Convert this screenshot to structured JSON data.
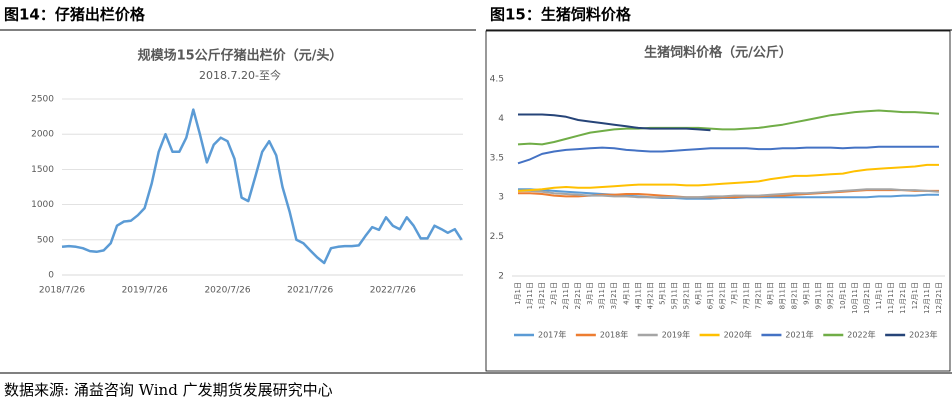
{
  "headings": [
    "图14：仔猪出栏价格",
    "图15：生猪饲料价格"
  ],
  "source": "数据来源: 涌益咨询 Wind 广发期货发展研究中心",
  "chart_data": [
    {
      "type": "line",
      "title": "规模场15公斤仔猪出栏价（元/头）",
      "subtitle": "2018.7.20-至今",
      "x": [
        "2018/7/26",
        "2018/8/26",
        "2018/9/26",
        "2018/10/26",
        "2018/11/26",
        "2018/12/26",
        "2019/1/26",
        "2019/2/26",
        "2019/3/26",
        "2019/4/26",
        "2019/5/26",
        "2019/6/26",
        "2019/7/26",
        "2019/8/26",
        "2019/9/26",
        "2019/10/26",
        "2019/11/26",
        "2019/12/26",
        "2020/1/26",
        "2020/2/26",
        "2020/3/26",
        "2020/4/26",
        "2020/5/26",
        "2020/6/26",
        "2020/7/26",
        "2020/8/26",
        "2020/9/26",
        "2020/10/26",
        "2020/11/26",
        "2020/12/26",
        "2021/1/26",
        "2021/2/26",
        "2021/3/26",
        "2021/4/26",
        "2021/5/26",
        "2021/6/26",
        "2021/7/26",
        "2021/8/26",
        "2021/9/26",
        "2021/10/26",
        "2021/11/26",
        "2021/12/26",
        "2022/1/26",
        "2022/2/26",
        "2022/3/26",
        "2022/4/26",
        "2022/5/26",
        "2022/6/26",
        "2022/7/26",
        "2022/8/26",
        "2022/9/26",
        "2022/10/26",
        "2022/11/26",
        "2022/12/26",
        "2023/1/26",
        "2023/2/26",
        "2023/3/26",
        "2023/4/26",
        "2023/5/26"
      ],
      "series": [
        {
          "name": "仔猪出栏价",
          "color": "#5b9bd5",
          "values": [
            400,
            410,
            400,
            380,
            340,
            330,
            350,
            450,
            700,
            760,
            770,
            850,
            950,
            1300,
            1750,
            2000,
            1750,
            1750,
            1950,
            2350,
            2000,
            1600,
            1850,
            1950,
            1900,
            1650,
            1100,
            1050,
            1400,
            1750,
            1900,
            1700,
            1250,
            900,
            500,
            450,
            350,
            250,
            170,
            380,
            400,
            410,
            410,
            420,
            550,
            680,
            640,
            820,
            700,
            650,
            820,
            700,
            520,
            520,
            700,
            650,
            600,
            650,
            500
          ]
        }
      ],
      "xlim": [
        "2018/7/26",
        "2023/6/1"
      ],
      "xticks": [
        "2018/7/26",
        "2019/7/26",
        "2020/7/26",
        "2021/7/26",
        "2022/7/26"
      ],
      "ylim": [
        0,
        2500
      ],
      "yticks": [
        0,
        500,
        1000,
        1500,
        2000,
        2500
      ],
      "grid": true,
      "legend": false
    },
    {
      "type": "line",
      "title": "生猪饲料价格（元/公斤）",
      "categories": [
        "1月1日",
        "1月11日",
        "1月21日",
        "2月1日",
        "2月11日",
        "2月21日",
        "3月1日",
        "3月11日",
        "3月21日",
        "4月1日",
        "4月11日",
        "4月21日",
        "5月1日",
        "5月11日",
        "5月21日",
        "6月1日",
        "6月11日",
        "6月21日",
        "7月1日",
        "7月11日",
        "7月21日",
        "8月1日",
        "8月11日",
        "8月21日",
        "9月1日",
        "9月11日",
        "9月21日",
        "10月1日",
        "10月11日",
        "10月21日",
        "11月1日",
        "11月11日",
        "11月21日",
        "12月1日",
        "12月11日",
        "12月21日"
      ],
      "series": [
        {
          "name": "2017年",
          "color": "#5b9bd5",
          "values": [
            3.1,
            3.1,
            3.09,
            3.08,
            3.07,
            3.06,
            3.05,
            3.04,
            3.03,
            3.02,
            3.01,
            3.0,
            2.99,
            2.99,
            2.98,
            2.98,
            2.98,
            2.99,
            2.99,
            3.0,
            3.0,
            3.0,
            3.0,
            3.0,
            3.0,
            3.0,
            3.0,
            3.0,
            3.0,
            3.0,
            3.01,
            3.01,
            3.02,
            3.02,
            3.03,
            3.03
          ]
        },
        {
          "name": "2018年",
          "color": "#ed7d31",
          "values": [
            3.05,
            3.05,
            3.04,
            3.02,
            3.01,
            3.01,
            3.02,
            3.03,
            3.03,
            3.04,
            3.04,
            3.03,
            3.02,
            3.01,
            3.0,
            3.0,
            3.0,
            3.0,
            3.0,
            3.01,
            3.01,
            3.02,
            3.02,
            3.03,
            3.04,
            3.05,
            3.06,
            3.07,
            3.08,
            3.09,
            3.09,
            3.09,
            3.09,
            3.08,
            3.08,
            3.08
          ]
        },
        {
          "name": "2019年",
          "color": "#a5a5a5",
          "values": [
            3.08,
            3.08,
            3.07,
            3.05,
            3.04,
            3.03,
            3.02,
            3.02,
            3.01,
            3.01,
            3.0,
            3.0,
            3.0,
            3.0,
            3.0,
            3.0,
            3.01,
            3.01,
            3.02,
            3.02,
            3.02,
            3.03,
            3.04,
            3.05,
            3.05,
            3.06,
            3.07,
            3.08,
            3.09,
            3.1,
            3.1,
            3.1,
            3.09,
            3.09,
            3.08,
            3.07
          ]
        },
        {
          "name": "2020年",
          "color": "#ffc000",
          "values": [
            3.08,
            3.09,
            3.1,
            3.12,
            3.13,
            3.12,
            3.12,
            3.13,
            3.14,
            3.15,
            3.16,
            3.16,
            3.16,
            3.16,
            3.15,
            3.15,
            3.16,
            3.17,
            3.18,
            3.19,
            3.2,
            3.23,
            3.25,
            3.27,
            3.27,
            3.28,
            3.29,
            3.3,
            3.33,
            3.35,
            3.36,
            3.37,
            3.38,
            3.39,
            3.41,
            3.41
          ]
        },
        {
          "name": "2021年",
          "color": "#4472c4",
          "values": [
            3.43,
            3.48,
            3.55,
            3.58,
            3.6,
            3.61,
            3.62,
            3.63,
            3.62,
            3.6,
            3.59,
            3.58,
            3.58,
            3.59,
            3.6,
            3.61,
            3.62,
            3.62,
            3.62,
            3.62,
            3.61,
            3.61,
            3.62,
            3.62,
            3.63,
            3.63,
            3.63,
            3.62,
            3.63,
            3.63,
            3.64,
            3.64,
            3.64,
            3.64,
            3.64,
            3.64
          ]
        },
        {
          "name": "2022年",
          "color": "#70ad47",
          "values": [
            3.67,
            3.68,
            3.67,
            3.7,
            3.74,
            3.78,
            3.82,
            3.84,
            3.86,
            3.87,
            3.87,
            3.88,
            3.88,
            3.88,
            3.88,
            3.88,
            3.87,
            3.86,
            3.86,
            3.87,
            3.88,
            3.9,
            3.92,
            3.95,
            3.98,
            4.01,
            4.04,
            4.06,
            4.08,
            4.09,
            4.1,
            4.09,
            4.08,
            4.08,
            4.07,
            4.06
          ]
        },
        {
          "name": "2023年",
          "color": "#264478",
          "values": [
            4.05,
            4.05,
            4.05,
            4.04,
            4.02,
            3.98,
            3.96,
            3.94,
            3.92,
            3.9,
            3.88,
            3.87,
            3.87,
            3.87,
            3.87,
            3.86,
            3.85,
            null,
            null,
            null,
            null,
            null,
            null,
            null,
            null,
            null,
            null,
            null,
            null,
            null,
            null,
            null,
            null,
            null,
            null,
            null
          ]
        }
      ],
      "ylim": [
        2,
        4.5
      ],
      "yticks": [
        2,
        2.5,
        3,
        3.5,
        4,
        4.5
      ],
      "grid": false,
      "legend": "bottom"
    }
  ]
}
